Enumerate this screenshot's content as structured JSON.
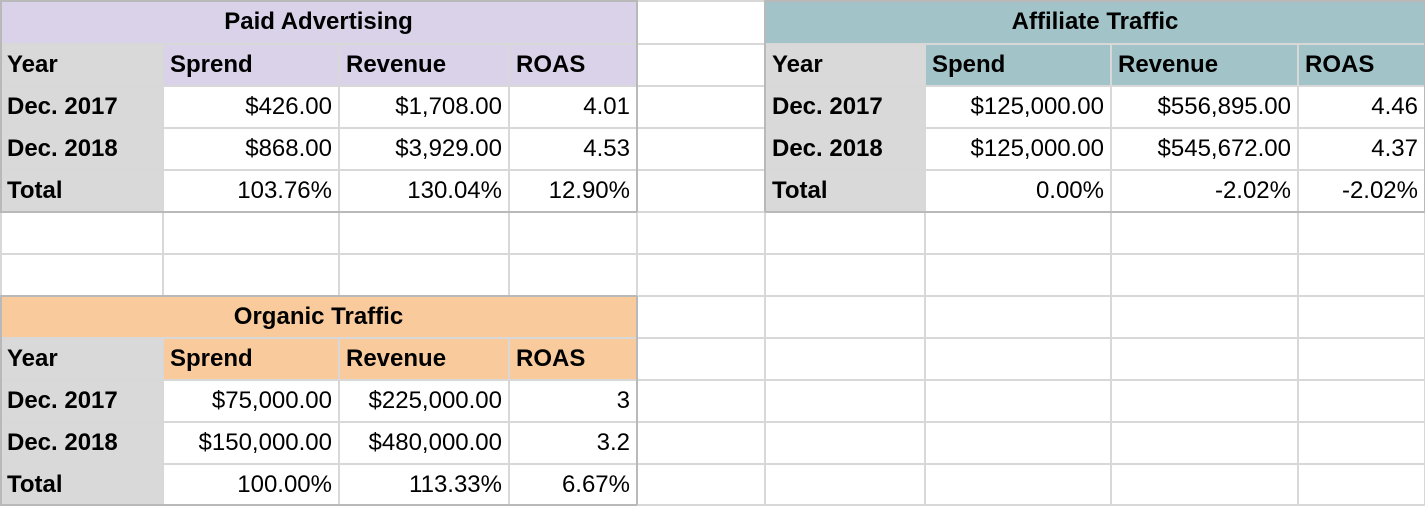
{
  "colors": {
    "paid_header": "#d9d2e9",
    "affiliate_header": "#a2c4c9",
    "organic_header": "#f9cb9c",
    "row_label": "#d9d9d9",
    "gridline": "#d8d8d8"
  },
  "paid": {
    "title": "Paid Advertising",
    "headers": [
      "Year",
      "Sprend",
      "Revenue",
      "ROAS"
    ],
    "rows": [
      {
        "year": "Dec. 2017",
        "spend": "$426.00",
        "revenue": "$1,708.00",
        "roas": "4.01"
      },
      {
        "year": "Dec. 2018",
        "spend": "$868.00",
        "revenue": "$3,929.00",
        "roas": "4.53"
      },
      {
        "year": "Total",
        "spend": "103.76%",
        "revenue": "130.04%",
        "roas": "12.90%"
      }
    ]
  },
  "affiliate": {
    "title": "Affiliate Traffic",
    "headers": [
      "Year",
      "Spend",
      "Revenue",
      "ROAS"
    ],
    "rows": [
      {
        "year": "Dec. 2017",
        "spend": "$125,000.00",
        "revenue": "$556,895.00",
        "roas": "4.46"
      },
      {
        "year": "Dec. 2018",
        "spend": "$125,000.00",
        "revenue": "$545,672.00",
        "roas": "4.37"
      },
      {
        "year": "Total",
        "spend": "0.00%",
        "revenue": "-2.02%",
        "roas": "-2.02%"
      }
    ]
  },
  "organic": {
    "title": "Organic Traffic",
    "headers": [
      "Year",
      "Sprend",
      "Revenue",
      "ROAS"
    ],
    "rows": [
      {
        "year": "Dec. 2017",
        "spend": "$75,000.00",
        "revenue": "$225,000.00",
        "roas": "3"
      },
      {
        "year": "Dec. 2018",
        "spend": "$150,000.00",
        "revenue": "$480,000.00",
        "roas": "3.2"
      },
      {
        "year": "Total",
        "spend": "100.00%",
        "revenue": "113.33%",
        "roas": "6.67%"
      }
    ]
  }
}
